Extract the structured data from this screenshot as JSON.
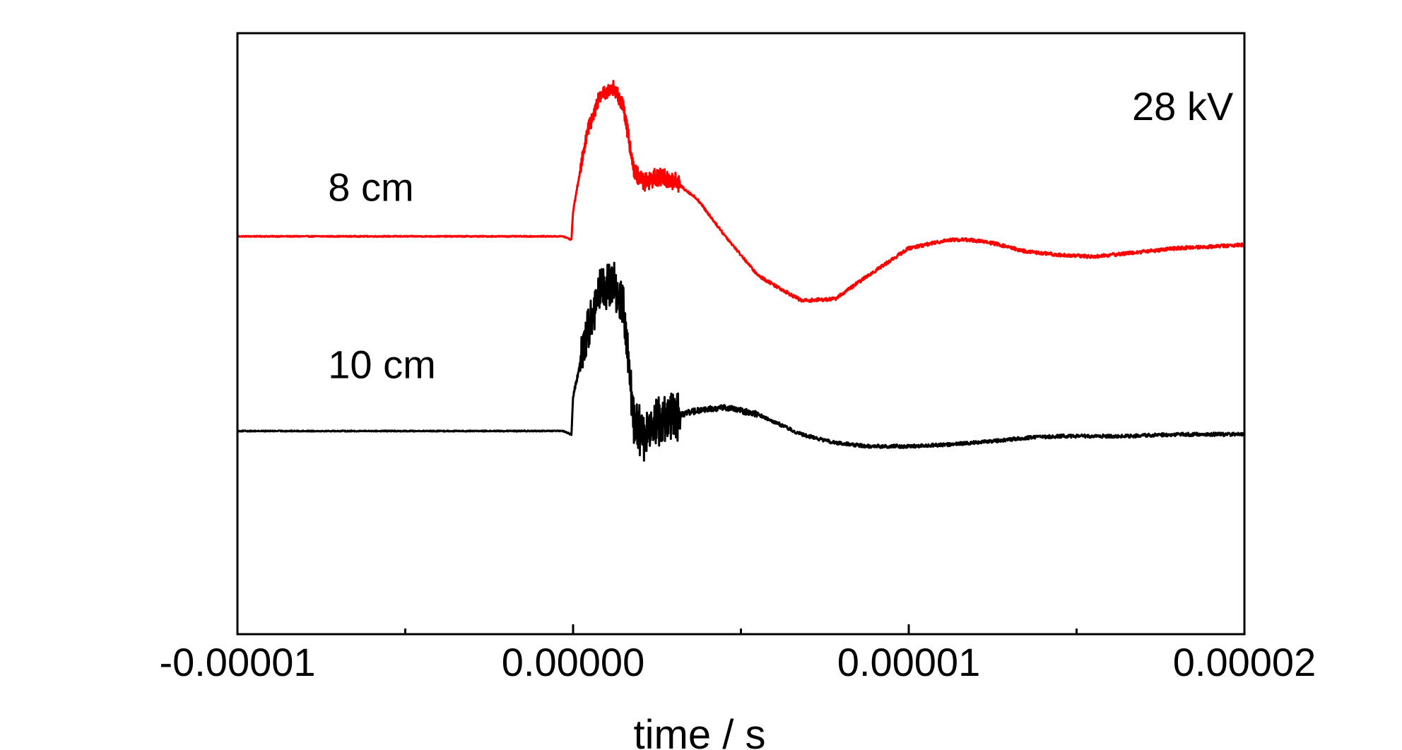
{
  "chart_data": {
    "type": "line",
    "title": "",
    "xlabel": "time / s",
    "ylabel": "",
    "xlim": [
      -1e-05,
      2e-05
    ],
    "xticks": [
      -1e-05,
      0.0,
      1e-05,
      2e-05
    ],
    "xtick_labels": [
      "-0.00001",
      "0.00000",
      "0.00001",
      "0.00002"
    ],
    "xtick_minor": [
      -5e-06,
      5e-06,
      1.5e-05
    ],
    "ylim": [
      -1.2,
      2.35
    ],
    "grid": false,
    "legend": "none",
    "annotations": [
      {
        "id": "voltage",
        "text": "28 kV"
      }
    ],
    "series": [
      {
        "name": "8 cm",
        "color": "#ff0000",
        "noise": [
          0.006,
          0.01,
          0.04,
          0.05,
          0.015,
          0.02
        ],
        "x": [
          -1e-05,
          -3e-07,
          -5e-08,
          0.0,
          4e-07,
          8e-07,
          1.2e-06,
          1.5e-06,
          1.8e-06,
          2.1e-06,
          2.5e-06,
          3e-06,
          3.7e-06,
          4.5e-06,
          5.5e-06,
          6.8e-06,
          7.8e-06,
          8.8e-06,
          1e-05,
          1.12e-05,
          1.18e-05,
          1.25e-05,
          1.35e-05,
          1.45e-05,
          1.55e-05,
          1.65e-05,
          1.8e-05,
          2e-05
        ],
        "values": [
          1.15,
          1.15,
          1.13,
          1.3,
          1.75,
          1.98,
          2.03,
          1.92,
          1.55,
          1.47,
          1.5,
          1.48,
          1.37,
          1.16,
          0.92,
          0.77,
          0.78,
          0.92,
          1.08,
          1.13,
          1.13,
          1.11,
          1.06,
          1.04,
          1.03,
          1.05,
          1.08,
          1.1
        ]
      },
      {
        "name": "10 cm",
        "color": "#000000",
        "noise": [
          0.006,
          0.015,
          0.12,
          0.14,
          0.035,
          0.02
        ],
        "x": [
          -1e-05,
          -3e-07,
          -5e-08,
          0.0,
          4e-07,
          8e-07,
          1.2e-06,
          1.5e-06,
          1.8e-06,
          2.1e-06,
          2.5e-06,
          3e-06,
          3.7e-06,
          4.5e-06,
          5.5e-06,
          6.8e-06,
          7.8e-06,
          8.8e-06,
          1e-05,
          1.12e-05,
          1.18e-05,
          1.25e-05,
          1.35e-05,
          1.45e-05,
          1.55e-05,
          1.65e-05,
          1.8e-05,
          2e-05
        ],
        "values": [
          0.0,
          0.0,
          -0.02,
          0.2,
          0.58,
          0.82,
          0.88,
          0.72,
          0.08,
          -0.05,
          0.05,
          0.09,
          0.12,
          0.14,
          0.1,
          -0.02,
          -0.07,
          -0.09,
          -0.09,
          -0.08,
          -0.07,
          -0.06,
          -0.04,
          -0.03,
          -0.03,
          -0.03,
          -0.02,
          -0.02
        ]
      }
    ]
  }
}
